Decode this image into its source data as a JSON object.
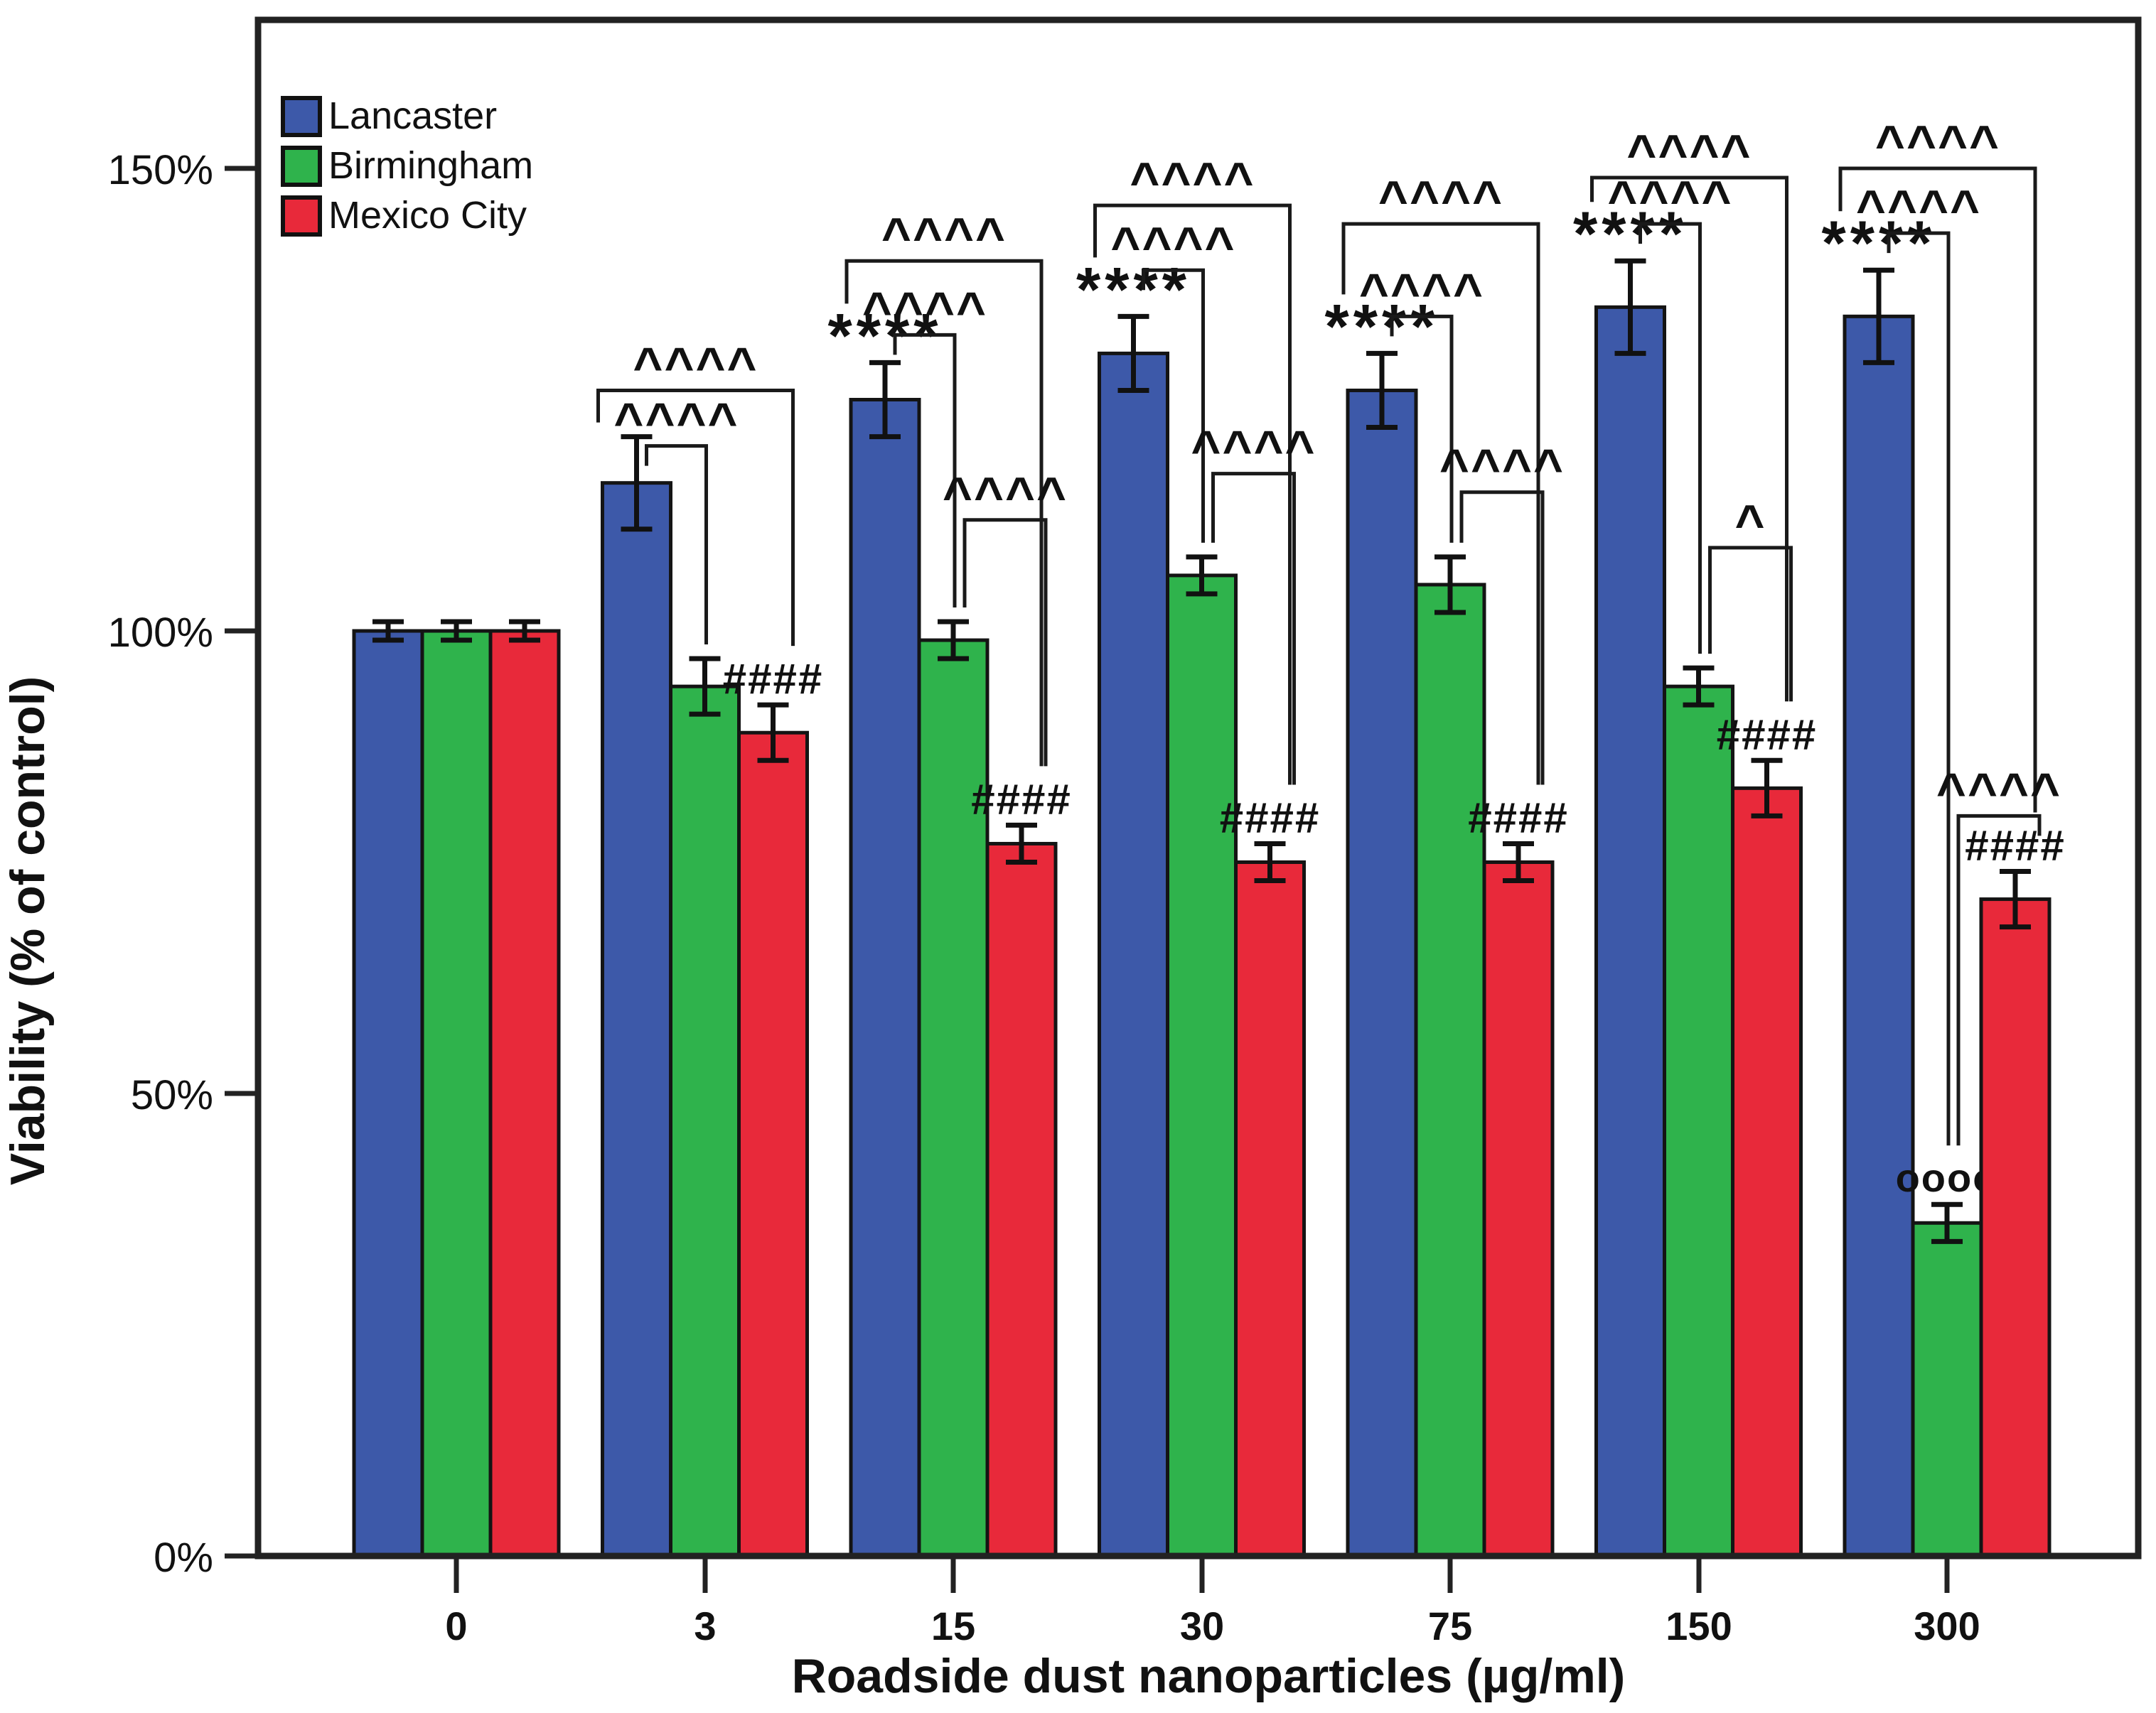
{
  "figure": {
    "y_axis": {
      "title": "Viability (% of control)",
      "ticks": [
        "0%",
        "50%",
        "100%",
        "150%"
      ],
      "tick_values": [
        0,
        50,
        100,
        150
      ]
    },
    "x_axis": {
      "title": "Roadside dust nanoparticles (µg/ml)",
      "ticks": [
        "0",
        "3",
        "15",
        "30",
        "75",
        "150",
        "300"
      ]
    },
    "legend": {
      "position": "top-left",
      "entries": [
        "Lancaster",
        "Birmingham",
        "Mexico City"
      ]
    }
  },
  "chart_data": {
    "type": "bar",
    "title": "",
    "xlabel": "Roadside dust nanoparticles (µg/ml)",
    "ylabel": "Viability (% of control)",
    "categories": [
      "0",
      "3",
      "15",
      "30",
      "75",
      "150",
      "300"
    ],
    "ylim": [
      0,
      168
    ],
    "grid": false,
    "legend_position": "top-left",
    "series": [
      {
        "name": "Lancaster",
        "color": "#3D59A9",
        "values": [
          100,
          116,
          125,
          130,
          126,
          135,
          134
        ],
        "errors": [
          1,
          5,
          4,
          4,
          4,
          5,
          5
        ],
        "annotations": [
          "",
          "",
          "****",
          "****",
          "****",
          "****",
          "****"
        ]
      },
      {
        "name": "Birmingham",
        "color": "#2FB34C",
        "values": [
          100,
          94,
          99,
          106,
          105,
          94,
          36
        ],
        "errors": [
          1,
          3,
          2,
          2,
          3,
          2,
          2
        ],
        "annotations": [
          "",
          "",
          "",
          "",
          "",
          "",
          "oooo"
        ]
      },
      {
        "name": "Mexico City",
        "color": "#E8293A",
        "values": [
          100,
          89,
          77,
          75,
          75,
          83,
          71
        ],
        "errors": [
          1,
          3,
          2,
          2,
          2,
          3,
          3
        ],
        "annotations": [
          "",
          "####",
          "####",
          "####",
          "####",
          "####",
          "####"
        ]
      }
    ],
    "comparisons": [
      {
        "group": 1,
        "from": 0,
        "to": 2,
        "symbol": "^^^^",
        "level": 126
      },
      {
        "group": 1,
        "from": 0,
        "to": 1,
        "symbol": "^^^^",
        "level": 120
      },
      {
        "group": 2,
        "from": 0,
        "to": 2,
        "symbol": "^^^^",
        "level": 140
      },
      {
        "group": 2,
        "from": 0,
        "to": 1,
        "symbol": "^^^^",
        "level": 132
      },
      {
        "group": 2,
        "from": 1,
        "to": 2,
        "symbol": "^^^^",
        "level": 112
      },
      {
        "group": 3,
        "from": 0,
        "to": 2,
        "symbol": "^^^^",
        "level": 146
      },
      {
        "group": 3,
        "from": 0,
        "to": 1,
        "symbol": "^^^^",
        "level": 139
      },
      {
        "group": 3,
        "from": 1,
        "to": 2,
        "symbol": "^^^^",
        "level": 117
      },
      {
        "group": 4,
        "from": 0,
        "to": 2,
        "symbol": "^^^^",
        "level": 144
      },
      {
        "group": 4,
        "from": 0,
        "to": 1,
        "symbol": "^^^^",
        "level": 134
      },
      {
        "group": 4,
        "from": 1,
        "to": 2,
        "symbol": "^^^^",
        "level": 115
      },
      {
        "group": 5,
        "from": 0,
        "to": 2,
        "symbol": "^^^^",
        "level": 149
      },
      {
        "group": 5,
        "from": 0,
        "to": 1,
        "symbol": "^^^^",
        "level": 144
      },
      {
        "group": 5,
        "from": 1,
        "to": 2,
        "symbol": "^",
        "level": 109
      },
      {
        "group": 6,
        "from": 0,
        "to": 2,
        "symbol": "^^^^",
        "level": 150
      },
      {
        "group": 6,
        "from": 0,
        "to": 1,
        "symbol": "^^^^",
        "level": 143
      },
      {
        "group": 6,
        "from": 1,
        "to": 2,
        "symbol": "^^^^",
        "level": 80
      }
    ]
  }
}
